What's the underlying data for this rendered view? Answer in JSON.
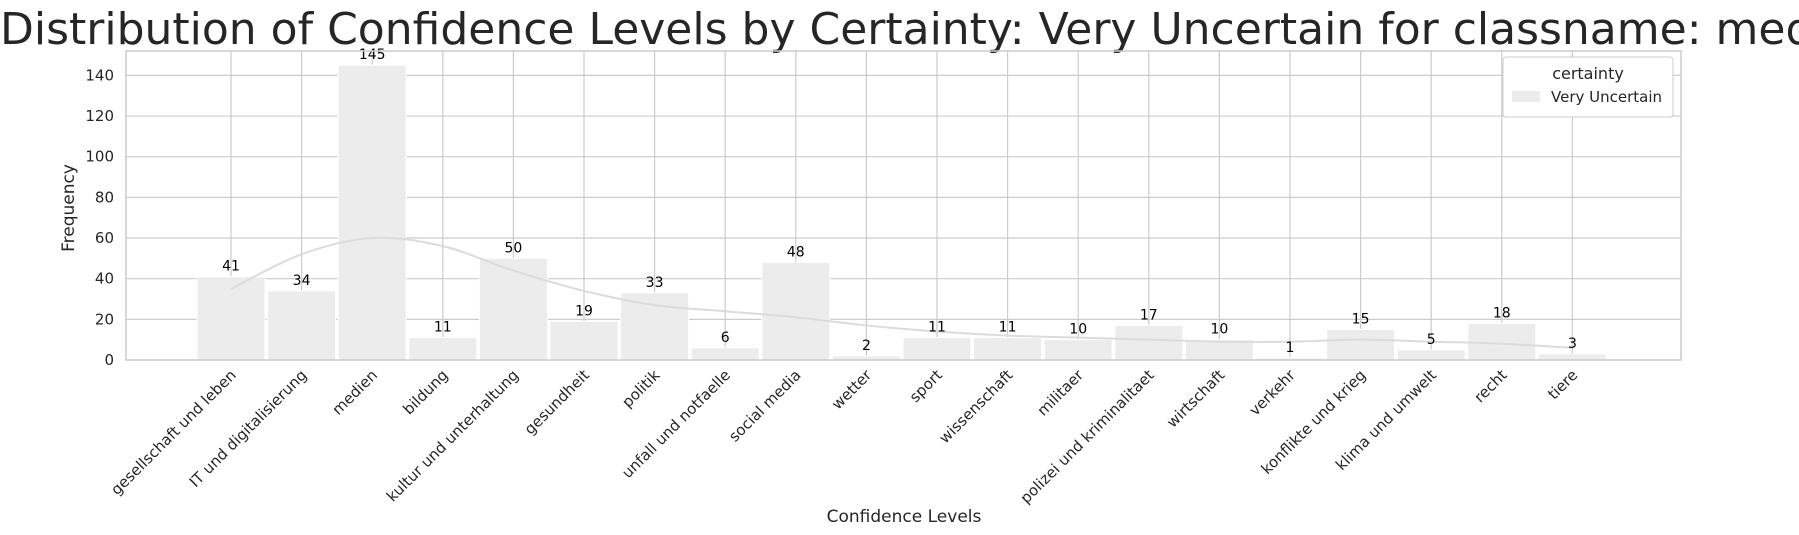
{
  "chart_data": {
    "type": "bar",
    "title": "Distribution of Confidence Levels by Certainty: Very Uncertain for classname: medien",
    "xlabel": "Confidence Levels",
    "ylabel": "Frequency",
    "categories": [
      "gesellschaft und leben",
      "IT und digitalisierung",
      "medien",
      "bildung",
      "kultur und unterhaltung",
      "gesundheit",
      "politik",
      "unfall und notfaelle",
      "social media",
      "wetter",
      "sport",
      "wissenschaft",
      "militaer",
      "polizei und kriminalitaet",
      "wirtschaft",
      "verkehr",
      "konflikte und krieg",
      "klima und umwelt",
      "recht",
      "tiere"
    ],
    "series": [
      {
        "name": "Very Uncertain",
        "values": [
          41,
          34,
          145,
          11,
          50,
          19,
          33,
          6,
          48,
          2,
          11,
          11,
          10,
          17,
          10,
          1,
          15,
          5,
          18,
          3
        ],
        "kde": [
          35,
          52,
          60,
          56,
          44,
          34,
          27,
          24,
          21,
          17,
          14,
          12,
          11,
          10,
          9,
          9,
          10,
          9,
          8,
          6
        ]
      }
    ],
    "ylim": [
      0,
      152
    ],
    "yticks": [
      0,
      20,
      40,
      60,
      80,
      100,
      120,
      140
    ],
    "grid": true,
    "legend": {
      "title": "certainty",
      "position": "top-right"
    },
    "colors": {
      "bar": "#ececec",
      "bar_edge": "#ffffff",
      "kde": "#dcdcdc",
      "grid": "#cccccc",
      "axes": "#cccccc"
    }
  }
}
